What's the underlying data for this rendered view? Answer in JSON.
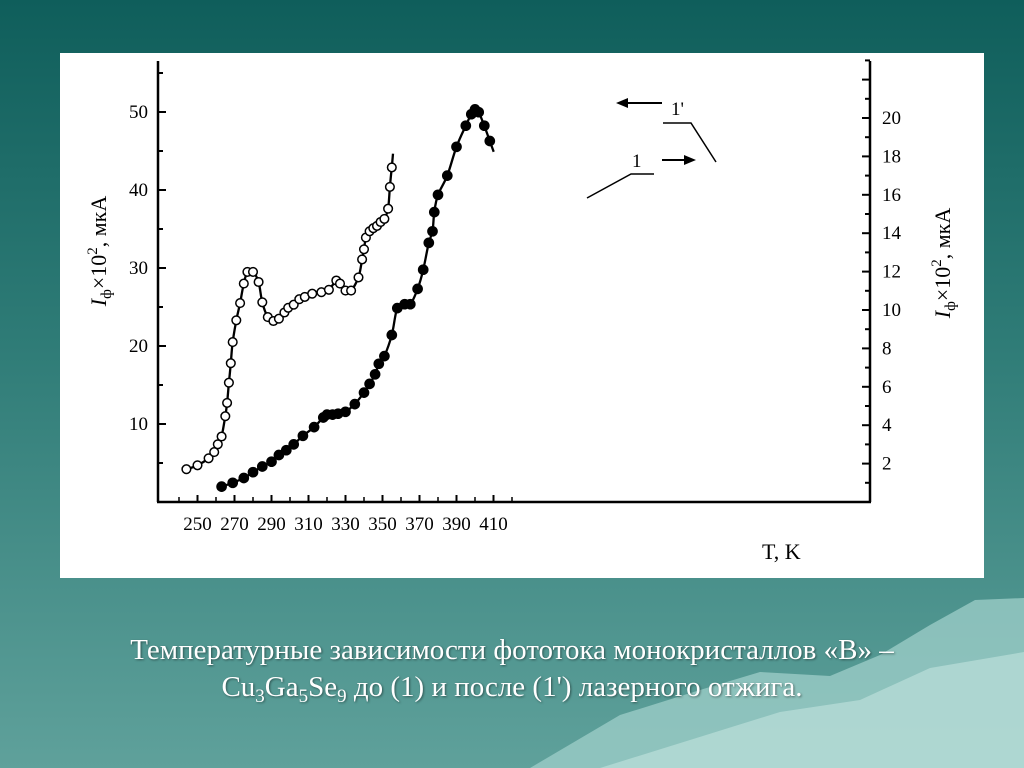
{
  "colors": {
    "background": "#2f7c77",
    "panel": "#ffffff",
    "caption_text": "#ffffff",
    "curve": "#000000"
  },
  "caption": {
    "line1": "Температурные зависимости фототока монокристаллов «В» –",
    "formula_cu": "Cu",
    "sub_cu": "3",
    "formula_ga": "Ga",
    "sub_ga": "5",
    "formula_se": "Se",
    "sub_se": "9",
    "line2_rest": " до (1) и после (1') лазерного отжига."
  },
  "chart_data": {
    "type": "line",
    "xlabel": "T, K",
    "xlim": [
      240,
      420
    ],
    "x_ticks": [
      250,
      270,
      290,
      310,
      330,
      350,
      370,
      390,
      410
    ],
    "ylabel_left": {
      "main": "I",
      "sub": "ф",
      "times": "×10",
      "sup": "2",
      "unit": ", мкА"
    },
    "ylim_left": [
      0,
      55
    ],
    "y_ticks_left": [
      10,
      20,
      30,
      40,
      50
    ],
    "ylabel_right": {
      "main": "I",
      "sub": "ф",
      "times": "×10",
      "sup": "2",
      "unit": ", мкА"
    },
    "ylim_right": [
      0,
      23
    ],
    "y_ticks_right": [
      2,
      4,
      6,
      8,
      10,
      12,
      14,
      16,
      18,
      20
    ],
    "series": [
      {
        "name": "1",
        "axis": "left",
        "marker": "open-circle",
        "arrow": "right",
        "x": [
          244,
          250,
          256,
          259,
          261,
          263,
          265,
          266,
          267,
          268,
          269,
          271,
          273,
          275,
          277,
          280,
          283,
          285,
          288,
          291,
          294,
          297,
          299,
          302,
          305,
          308,
          312,
          317,
          321,
          325,
          327,
          330,
          333,
          337,
          339,
          340,
          341,
          343,
          345,
          347,
          349,
          351,
          353,
          354,
          355
        ],
        "y": [
          4.2,
          4.7,
          5.6,
          6.4,
          7.4,
          8.4,
          11,
          12.7,
          15.3,
          17.8,
          20.5,
          23.3,
          25.5,
          28,
          29.5,
          29.5,
          28.2,
          25.6,
          23.7,
          23.2,
          23.5,
          24.3,
          24.9,
          25.3,
          26,
          26.3,
          26.7,
          26.9,
          27.2,
          28.4,
          28,
          27.1,
          27.1,
          28.8,
          31.1,
          32.4,
          33.9,
          34.7,
          35.1,
          35.4,
          35.9,
          36.3,
          37.6,
          40.4,
          42.9
        ]
      },
      {
        "name": "1'",
        "axis": "right",
        "marker": "filled-circle",
        "arrow": "left",
        "x": [
          263,
          269,
          275,
          280,
          285,
          290,
          294,
          298,
          302,
          307,
          313,
          318,
          320,
          323,
          326,
          330,
          335,
          340,
          343,
          346,
          348,
          351,
          355,
          358,
          362,
          365,
          369,
          372,
          375,
          377,
          378,
          380,
          385,
          390,
          395,
          398,
          400,
          402,
          405,
          408
        ],
        "y": [
          0.8,
          1.0,
          1.25,
          1.55,
          1.85,
          2.1,
          2.45,
          2.7,
          3.0,
          3.45,
          3.9,
          4.4,
          4.55,
          4.55,
          4.6,
          4.7,
          5.1,
          5.7,
          6.15,
          6.65,
          7.2,
          7.6,
          8.7,
          10.1,
          10.3,
          10.3,
          11.1,
          12.1,
          13.5,
          14.1,
          15.1,
          16.0,
          17.0,
          18.5,
          19.6,
          20.2,
          20.45,
          20.3,
          19.6,
          18.8
        ]
      }
    ],
    "grid": false,
    "legend": "curve-labels"
  }
}
